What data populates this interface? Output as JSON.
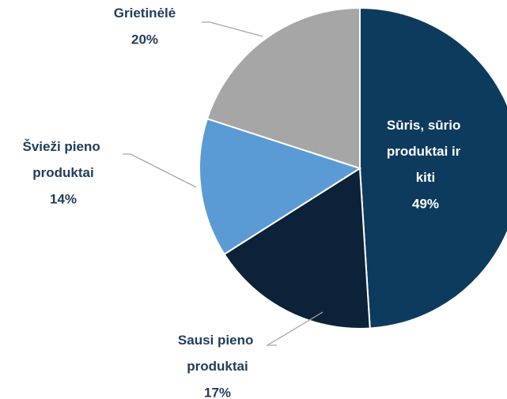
{
  "chart_data": {
    "type": "pie",
    "categories": [
      "Sūris, sūrio produktai ir kiti",
      "Sausi pieno produktai",
      "Švieži pieno produktai",
      "Grietinėlė"
    ],
    "values": [
      49,
      17,
      14,
      20
    ],
    "value_labels": [
      "49%",
      "17%",
      "14%",
      "20%"
    ],
    "colors": [
      "#0d3b5e",
      "#0b2239",
      "#5b9bd5",
      "#a6a6a6"
    ],
    "start_angle": 0,
    "direction": "clockwise"
  }
}
